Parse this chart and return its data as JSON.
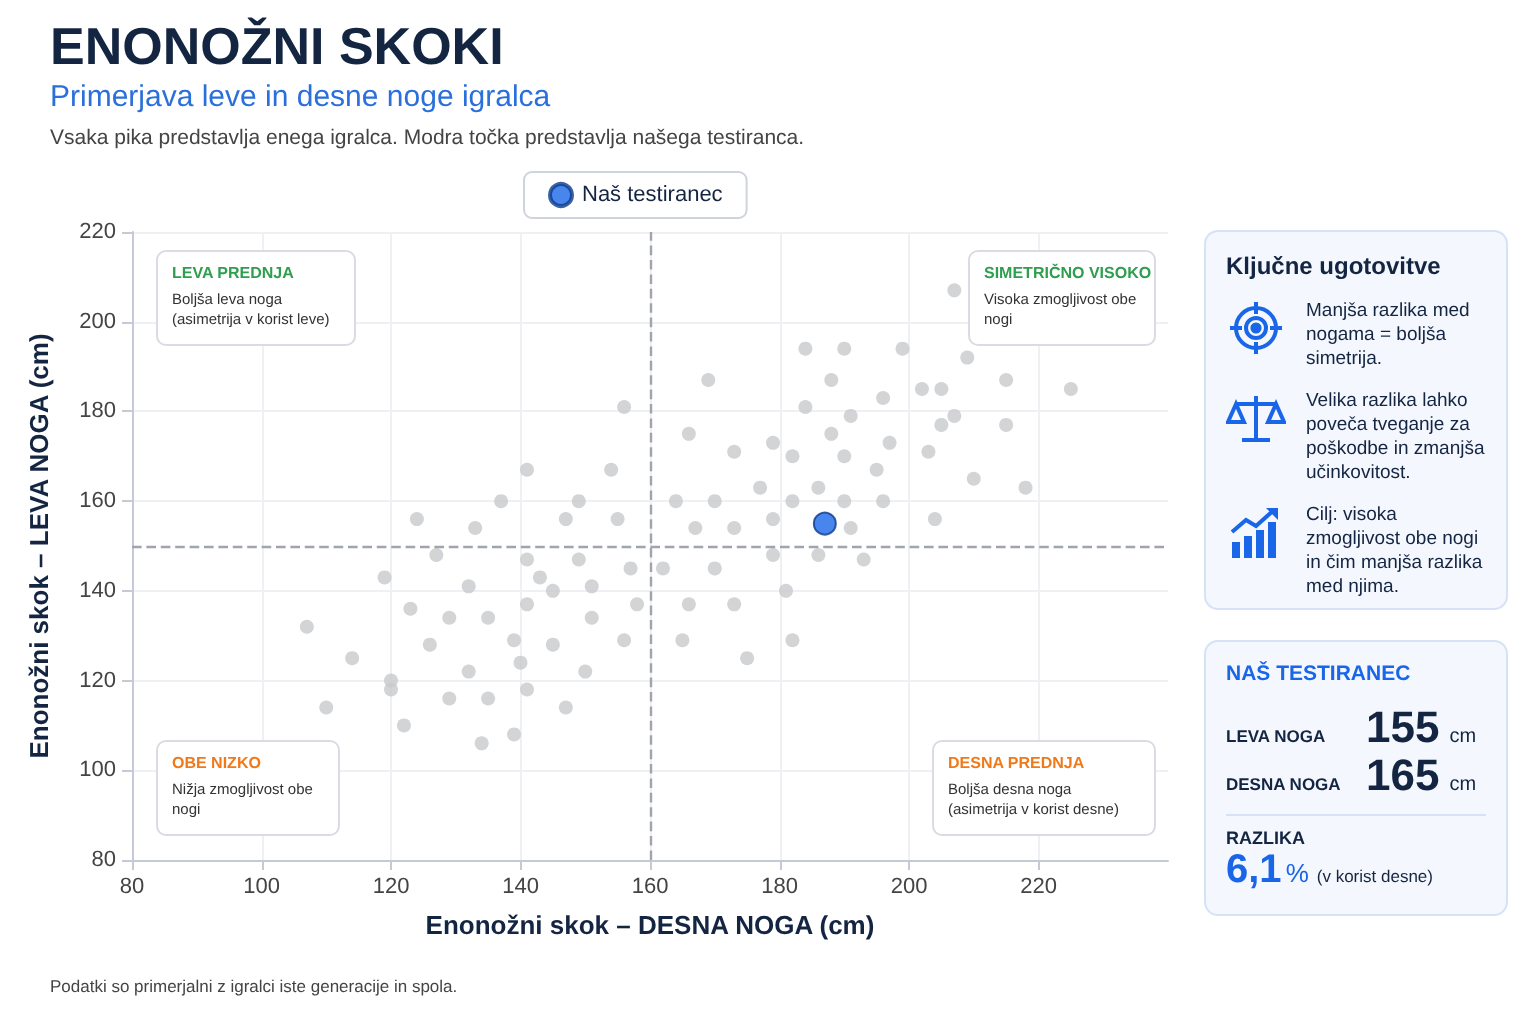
{
  "chart_data": {
    "type": "scatter",
    "title": "ENONOŽNI SKOKI",
    "subtitle": "Primerjava leve in desne noge igralca",
    "xlabel": "Enonožni skok – DESNA NOGA (cm)",
    "ylabel": "Enonožni skok – LEVA NOGA (cm)",
    "xlim": [
      80,
      240
    ],
    "xticks": [
      80,
      100,
      120,
      140,
      160,
      180,
      200,
      220
    ],
    "ylim": [
      80,
      220
    ],
    "yticks": [
      80,
      100,
      120,
      140,
      160,
      180,
      200,
      220
    ],
    "grid": true,
    "legend": "top",
    "marker": "circle",
    "ref_lines": [
      {
        "axis": "x",
        "value": 160,
        "color": "#a0a4ae",
        "line_style": "dashed"
      },
      {
        "axis": "y",
        "value": 150,
        "color": "#a0a4ae",
        "line_style": "dashed"
      }
    ],
    "series": [
      {
        "color": "#c8c9cc",
        "x": [
          156,
          141,
          154,
          137,
          149,
          124,
          147,
          155,
          133,
          127,
          141,
          149,
          157,
          162,
          143,
          119,
          132,
          145,
          151,
          123,
          141,
          158,
          107,
          129,
          135,
          151,
          139,
          156,
          114,
          126,
          145,
          140,
          132,
          150,
          120,
          120,
          141,
          110,
          129,
          135,
          147,
          122,
          139,
          134,
          207,
          184,
          190,
          199,
          209,
          169,
          188,
          215,
          202,
          205,
          225,
          184,
          196,
          191,
          207,
          205,
          215,
          166,
          179,
          188,
          197,
          173,
          182,
          190,
          203,
          195,
          210,
          218,
          177,
          186,
          164,
          170,
          182,
          190,
          196,
          179,
          204,
          167,
          173,
          191,
          179,
          186,
          193,
          170,
          181,
          166,
          173,
          165,
          182,
          175
        ],
        "values": [
          181,
          167,
          167,
          160,
          160,
          156,
          156,
          156,
          154,
          148,
          147,
          147,
          145,
          145,
          143,
          143,
          141,
          140,
          141,
          136,
          137,
          137,
          132,
          134,
          134,
          134,
          129,
          129,
          125,
          128,
          128,
          124,
          122,
          122,
          120,
          118,
          118,
          114,
          116,
          116,
          114,
          110,
          108,
          106,
          207,
          194,
          194,
          194,
          192,
          187,
          187,
          187,
          185,
          185,
          185,
          181,
          183,
          179,
          179,
          177,
          177,
          175,
          173,
          175,
          173,
          171,
          170,
          170,
          171,
          167,
          165,
          163,
          163,
          163,
          160,
          160,
          160,
          160,
          160,
          156,
          156,
          154,
          154,
          154,
          148,
          148,
          147,
          145,
          140,
          137,
          137,
          129,
          129,
          125
        ]
      },
      {
        "name": "Naš testiranec",
        "color": "#1a66e8",
        "x": [
          187
        ],
        "values": [
          155
        ]
      }
    ],
    "annotations": [
      "Vsaka pika predstavlja enega igralca. Modra točka predstavlja našega testiranca.",
      "LEVA PREDNJA",
      "Boljša leva noga (asimetrija v korist leve)",
      "SIMETRIČNO VISOKO",
      "Visoka zmogljivost obe nogi",
      "OBE NIZKO",
      "Nižja zmogljivost obe nogi",
      "DESNA PREDNJA",
      "Boljša desna noga (asimetrija v korist desne)",
      "Ključne ugotovitve",
      "Manjša razlika med nogama = boljša simetrija.",
      "Velika razlika lahko poveča tveganje za poškodbe in zmanjša učinkovitost.",
      "Cilj: visoka zmogljivost obe nogi in čim manjša razlika med njima.",
      "NAŠ TESTIRANEC",
      "LEVA NOGA",
      "155",
      "cm",
      "DESNA NOGA",
      "165",
      "cm",
      "RAZLIKA",
      "6,1",
      "%",
      "(v korist desne)",
      "Podatki so primerjalni z igralci iste generacije in spola."
    ]
  }
}
